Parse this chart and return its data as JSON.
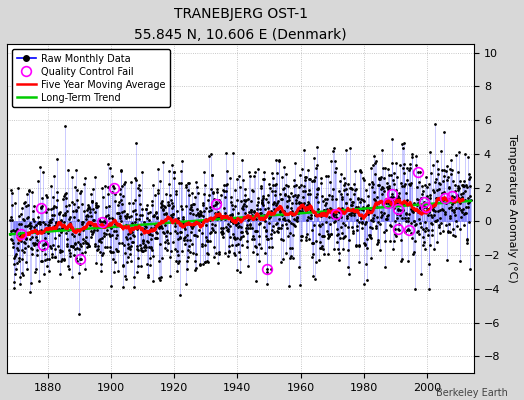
{
  "title": "TRANEBJERG OST-1",
  "subtitle": "55.845 N, 10.606 E (Denmark)",
  "ylabel": "Temperature Anomaly (°C)",
  "credit": "Berkeley Earth",
  "year_start": 1868,
  "year_end": 2013,
  "ylim": [
    -9,
    10.5
  ],
  "yticks": [
    -8,
    -6,
    -4,
    -2,
    0,
    2,
    4,
    6,
    8,
    10
  ],
  "xticks": [
    1880,
    1900,
    1920,
    1940,
    1960,
    1980,
    2000
  ],
  "bg_color": "#d8d8d8",
  "plot_bg_color": "#ffffff",
  "line_color": "#0000ff",
  "stem_color": "#6666ff",
  "ma_color": "#ff0000",
  "trend_color": "#00cc00",
  "qc_color": "#ff00ff",
  "seed": 42
}
